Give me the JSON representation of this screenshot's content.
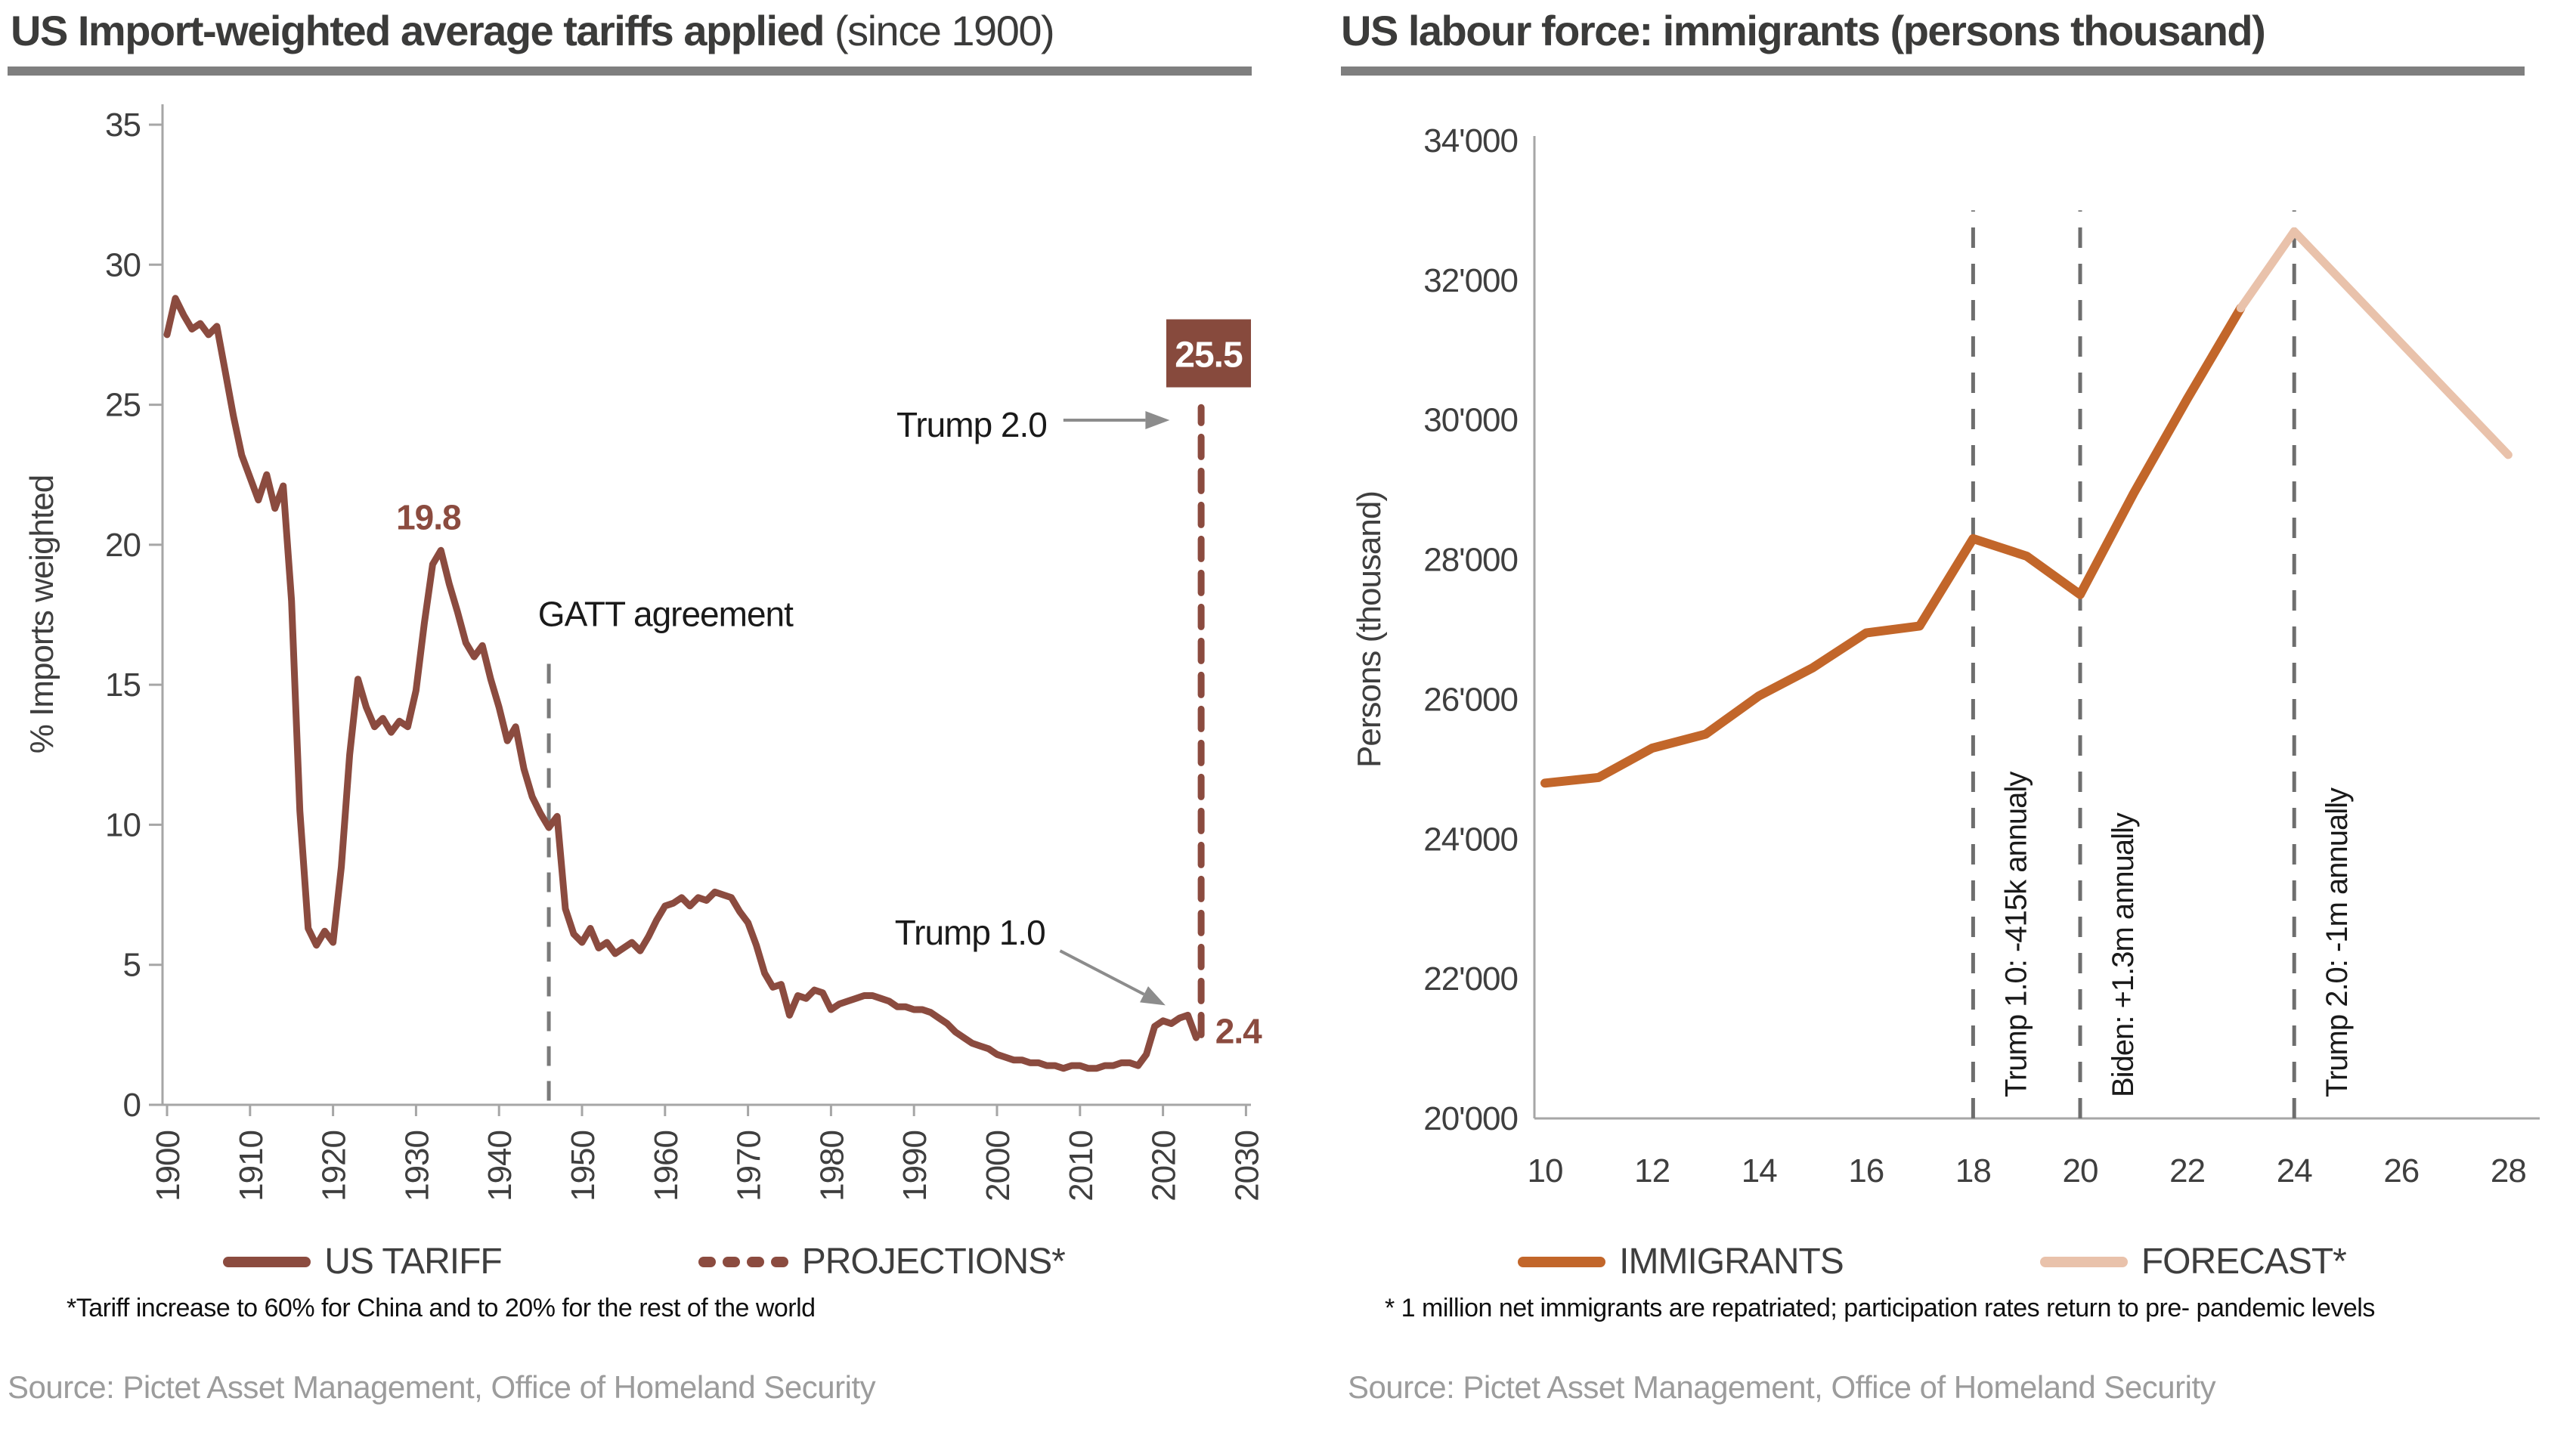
{
  "panels": [
    {
      "title_bold": "US Import-weighted average tariffs applied",
      "title_regular": " (since 1900)",
      "legend": [
        {
          "label": "US TARIFF",
          "swatch": "solid-maroon"
        },
        {
          "label": "PROJECTIONS*",
          "swatch": "dashed-maroon"
        }
      ],
      "footnote": "*Tariff increase to 60% for China and to 20% for the rest of the world",
      "source": "Source: Pictet Asset Management, Office of Homeland Security"
    },
    {
      "title_bold": "US labour force: immigrants (persons thousand)",
      "title_regular": "",
      "legend": [
        {
          "label": "IMMIGRANTS",
          "swatch": "solid-orange"
        },
        {
          "label": "FORECAST*",
          "swatch": "solid-peach"
        }
      ],
      "footnote": "* 1 million net immigrants are repatriated; participation rates return to pre- pandemic levels",
      "source": "Source: Pictet Asset Management, Office of Homeland Security"
    }
  ],
  "colors": {
    "tariff_line": "#8B4B3F",
    "projection_line": "#8B4B3F",
    "box_bg": "#874A3D",
    "box_text": "#FFFFFF",
    "immigrants_line": "#C2662A",
    "forecast_line": "#E9C2AB",
    "axis": "#A6A6A6",
    "tick_text": "#3F3F3F",
    "annotation_text": "#1A1A1A",
    "value_label": "#8B4B3F",
    "gatt_dash": "#7A7A7A",
    "policy_dash": "#6E6E6E",
    "arrow": "#8C8C8C",
    "title_text": "#3B3B3A",
    "title_rule": "#7F7F7F",
    "source_text": "#9C9C9C"
  },
  "chart_data": [
    {
      "type": "line",
      "title": "US Import-weighted average tariffs applied (since 1900)",
      "xlabel": "",
      "ylabel": "% Imports weighted",
      "xlim": [
        1899,
        2031
      ],
      "ylim": [
        0,
        35
      ],
      "xticks": [
        1900,
        1910,
        1920,
        1930,
        1940,
        1950,
        1960,
        1970,
        1980,
        1990,
        2000,
        2010,
        2020,
        2030
      ],
      "yticks": [
        0,
        5,
        10,
        15,
        20,
        25,
        30,
        35
      ],
      "grid": false,
      "legend_position": "bottom",
      "series": [
        {
          "name": "US TARIFF",
          "style": "solid",
          "points": [
            [
              1900,
              27.5
            ],
            [
              1901,
              28.8
            ],
            [
              1902,
              28.2
            ],
            [
              1903,
              27.7
            ],
            [
              1904,
              27.9
            ],
            [
              1905,
              27.5
            ],
            [
              1906,
              27.8
            ],
            [
              1907,
              26.2
            ],
            [
              1908,
              24.6
            ],
            [
              1909,
              23.2
            ],
            [
              1910,
              22.4
            ],
            [
              1911,
              21.6
            ],
            [
              1912,
              22.5
            ],
            [
              1913,
              21.3
            ],
            [
              1914,
              22.1
            ],
            [
              1915,
              18.0
            ],
            [
              1916,
              10.5
            ],
            [
              1917,
              6.3
            ],
            [
              1918,
              5.7
            ],
            [
              1919,
              6.2
            ],
            [
              1920,
              5.8
            ],
            [
              1921,
              8.5
            ],
            [
              1922,
              12.5
            ],
            [
              1923,
              15.2
            ],
            [
              1924,
              14.2
            ],
            [
              1925,
              13.5
            ],
            [
              1926,
              13.8
            ],
            [
              1927,
              13.3
            ],
            [
              1928,
              13.7
            ],
            [
              1929,
              13.5
            ],
            [
              1930,
              14.8
            ],
            [
              1931,
              17.2
            ],
            [
              1932,
              19.3
            ],
            [
              1933,
              19.8
            ],
            [
              1934,
              18.6
            ],
            [
              1935,
              17.6
            ],
            [
              1936,
              16.5
            ],
            [
              1937,
              16.0
            ],
            [
              1938,
              16.4
            ],
            [
              1939,
              15.2
            ],
            [
              1940,
              14.2
            ],
            [
              1941,
              13.0
            ],
            [
              1942,
              13.5
            ],
            [
              1943,
              12.0
            ],
            [
              1944,
              11.0
            ],
            [
              1945,
              10.4
            ],
            [
              1946,
              9.9
            ],
            [
              1947,
              10.3
            ],
            [
              1948,
              7.0
            ],
            [
              1949,
              6.1
            ],
            [
              1950,
              5.8
            ],
            [
              1951,
              6.3
            ],
            [
              1952,
              5.6
            ],
            [
              1953,
              5.8
            ],
            [
              1954,
              5.4
            ],
            [
              1955,
              5.6
            ],
            [
              1956,
              5.8
            ],
            [
              1957,
              5.5
            ],
            [
              1958,
              6.0
            ],
            [
              1959,
              6.6
            ],
            [
              1960,
              7.1
            ],
            [
              1961,
              7.2
            ],
            [
              1962,
              7.4
            ],
            [
              1963,
              7.1
            ],
            [
              1964,
              7.4
            ],
            [
              1965,
              7.3
            ],
            [
              1966,
              7.6
            ],
            [
              1967,
              7.5
            ],
            [
              1968,
              7.4
            ],
            [
              1969,
              6.9
            ],
            [
              1970,
              6.5
            ],
            [
              1971,
              5.7
            ],
            [
              1972,
              4.7
            ],
            [
              1973,
              4.2
            ],
            [
              1974,
              4.3
            ],
            [
              1975,
              3.2
            ],
            [
              1976,
              3.9
            ],
            [
              1977,
              3.8
            ],
            [
              1978,
              4.1
            ],
            [
              1979,
              4.0
            ],
            [
              1980,
              3.4
            ],
            [
              1981,
              3.6
            ],
            [
              1982,
              3.7
            ],
            [
              1983,
              3.8
            ],
            [
              1984,
              3.9
            ],
            [
              1985,
              3.9
            ],
            [
              1986,
              3.8
            ],
            [
              1987,
              3.7
            ],
            [
              1988,
              3.5
            ],
            [
              1989,
              3.5
            ],
            [
              1990,
              3.4
            ],
            [
              1991,
              3.4
            ],
            [
              1992,
              3.3
            ],
            [
              1993,
              3.1
            ],
            [
              1994,
              2.9
            ],
            [
              1995,
              2.6
            ],
            [
              1996,
              2.4
            ],
            [
              1997,
              2.2
            ],
            [
              1998,
              2.1
            ],
            [
              1999,
              2.0
            ],
            [
              2000,
              1.8
            ],
            [
              2001,
              1.7
            ],
            [
              2002,
              1.6
            ],
            [
              2003,
              1.6
            ],
            [
              2004,
              1.5
            ],
            [
              2005,
              1.5
            ],
            [
              2006,
              1.4
            ],
            [
              2007,
              1.4
            ],
            [
              2008,
              1.3
            ],
            [
              2009,
              1.4
            ],
            [
              2010,
              1.4
            ],
            [
              2011,
              1.3
            ],
            [
              2012,
              1.3
            ],
            [
              2013,
              1.4
            ],
            [
              2014,
              1.4
            ],
            [
              2015,
              1.5
            ],
            [
              2016,
              1.5
            ],
            [
              2017,
              1.4
            ],
            [
              2018,
              1.8
            ],
            [
              2019,
              2.8
            ],
            [
              2020,
              3.0
            ],
            [
              2021,
              2.9
            ],
            [
              2022,
              3.1
            ],
            [
              2023,
              3.2
            ],
            [
              2024,
              2.4
            ]
          ]
        },
        {
          "name": "PROJECTIONS*",
          "style": "dashed",
          "points": [
            [
              2024.6,
              2.5
            ],
            [
              2024.6,
              24.9
            ]
          ]
        }
      ],
      "annotations": {
        "peak_value": {
          "text": "19.8",
          "x": 1931.5,
          "y": 20.55
        },
        "end_value": {
          "text": "2.4",
          "x": 2026.3,
          "y": 2.2
        },
        "projection_box": {
          "text": "25.5",
          "x": 2025.5,
          "y_top": 28.05
        },
        "gatt_line": {
          "x": 1946,
          "y1": 0.15,
          "y2": 16.2
        },
        "gatt_text": {
          "text": "GATT agreement",
          "x": 1944.7,
          "y": 17.1
        },
        "trump1_text": {
          "text": "Trump 1.0",
          "x": 2005.8,
          "y": 5.72
        },
        "trump1_arrow": {
          "x1": 2007.6,
          "y1": 5.5,
          "x2": 2020.3,
          "y2": 3.55
        },
        "trump2_text": {
          "text": "Trump 2.0",
          "x": 2006.0,
          "y": 23.85
        },
        "trump2_arrow": {
          "x1": 2008.0,
          "y1": 24.45,
          "x2": 2020.8,
          "y2": 24.45
        }
      }
    },
    {
      "type": "line",
      "title": "US labour force: immigrants (persons thousand)",
      "xlabel": "",
      "ylabel": "Persons (thousand)",
      "xlim": [
        10,
        28.6
      ],
      "ylim": [
        20000,
        34000
      ],
      "xticks": [
        10,
        12,
        14,
        16,
        18,
        20,
        22,
        24,
        26,
        28
      ],
      "yticks": [
        {
          "v": 20000,
          "label": "20'000"
        },
        {
          "v": 22000,
          "label": "22'000"
        },
        {
          "v": 24000,
          "label": "24'000"
        },
        {
          "v": 26000,
          "label": "26'000"
        },
        {
          "v": 28000,
          "label": "28'000"
        },
        {
          "v": 30000,
          "label": "30'000"
        },
        {
          "v": 32000,
          "label": "32'000"
        },
        {
          "v": 34000,
          "label": "34'000"
        }
      ],
      "grid": false,
      "legend_position": "bottom",
      "series": [
        {
          "name": "IMMIGRANTS",
          "style": "solid",
          "points": [
            [
              10,
              24800
            ],
            [
              11,
              24880
            ],
            [
              12,
              25300
            ],
            [
              13,
              25500
            ],
            [
              14,
              26050
            ],
            [
              15,
              26450
            ],
            [
              16,
              26950
            ],
            [
              17,
              27050
            ],
            [
              18,
              28300
            ],
            [
              19,
              28050
            ],
            [
              20,
              27500
            ],
            [
              21,
              28950
            ],
            [
              22,
              30300
            ],
            [
              23,
              31600
            ]
          ]
        },
        {
          "name": "FORECAST*",
          "style": "solid",
          "points": [
            [
              23,
              31600
            ],
            [
              24,
              32700
            ],
            [
              28,
              29500
            ]
          ]
        }
      ],
      "annotations": {
        "policy_lines": [
          {
            "x": 18,
            "y1": 20000,
            "y2": 33000,
            "label": "Trump 1.0: -415k annualy"
          },
          {
            "x": 20,
            "y1": 20000,
            "y2": 33000,
            "label": "Biden: +1.3m annually"
          },
          {
            "x": 24,
            "y1": 20000,
            "y2": 33000,
            "label": "Trump 2.0: -1m annually"
          }
        ]
      }
    }
  ]
}
